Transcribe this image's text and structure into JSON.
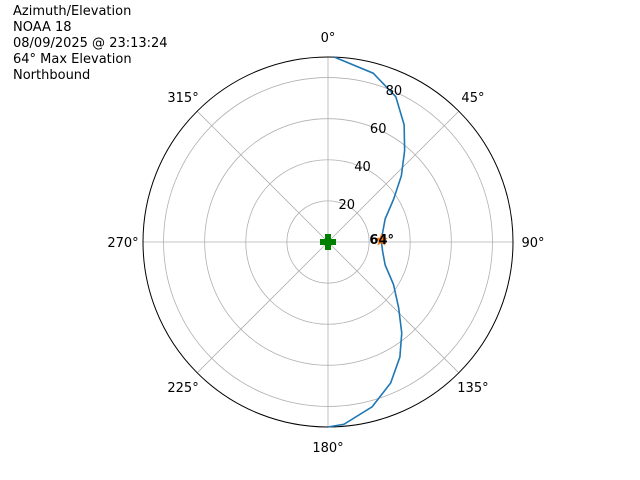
{
  "header": {
    "title": "Azimuth/Elevation",
    "satellite": "NOAA 18",
    "datetime": "08/09/2025 @ 23:13:24",
    "max_elevation": "64° Max Elevation",
    "direction": "Northbound"
  },
  "chart_data": {
    "type": "polar",
    "theta_direction": "clockwise",
    "theta_zero": "top",
    "theta_ticks": [
      "0°",
      "45°",
      "90°",
      "135°",
      "180°",
      "225°",
      "270°",
      "315°"
    ],
    "r_ticks": [
      20,
      40,
      60,
      80
    ],
    "r_axis_reversed": true,
    "r_axis_note": "radius represents 90 - elevation",
    "rlim": [
      0,
      90
    ],
    "grid": true,
    "series": [
      {
        "style": "line",
        "color": "#1f77b4",
        "points": [
          {
            "az": 2,
            "el": 0
          },
          {
            "az": 15,
            "el": 5
          },
          {
            "az": 25,
            "el": 12
          },
          {
            "az": 33,
            "el": 22
          },
          {
            "az": 40,
            "el": 32
          },
          {
            "az": 48,
            "el": 42
          },
          {
            "az": 57,
            "el": 52
          },
          {
            "az": 68,
            "el": 60
          },
          {
            "az": 80,
            "el": 63
          },
          {
            "az": 90,
            "el": 64
          },
          {
            "az": 100,
            "el": 63
          },
          {
            "az": 112,
            "el": 60
          },
          {
            "az": 123,
            "el": 52
          },
          {
            "az": 133,
            "el": 43
          },
          {
            "az": 141,
            "el": 33
          },
          {
            "az": 148,
            "el": 24
          },
          {
            "az": 156,
            "el": 15
          },
          {
            "az": 165,
            "el": 7
          },
          {
            "az": 175,
            "el": 1
          },
          {
            "az": 180,
            "el": 0
          }
        ]
      },
      {
        "style": "marker-plus",
        "color": "#008000",
        "points": [
          {
            "az": 0,
            "el": 90
          }
        ]
      },
      {
        "style": "marker-star",
        "color": "#ff7f0e",
        "points": [
          {
            "az": 88,
            "el": 64
          }
        ]
      }
    ],
    "annotations": [
      {
        "text": "64°",
        "az": 88,
        "el": 64
      }
    ]
  }
}
